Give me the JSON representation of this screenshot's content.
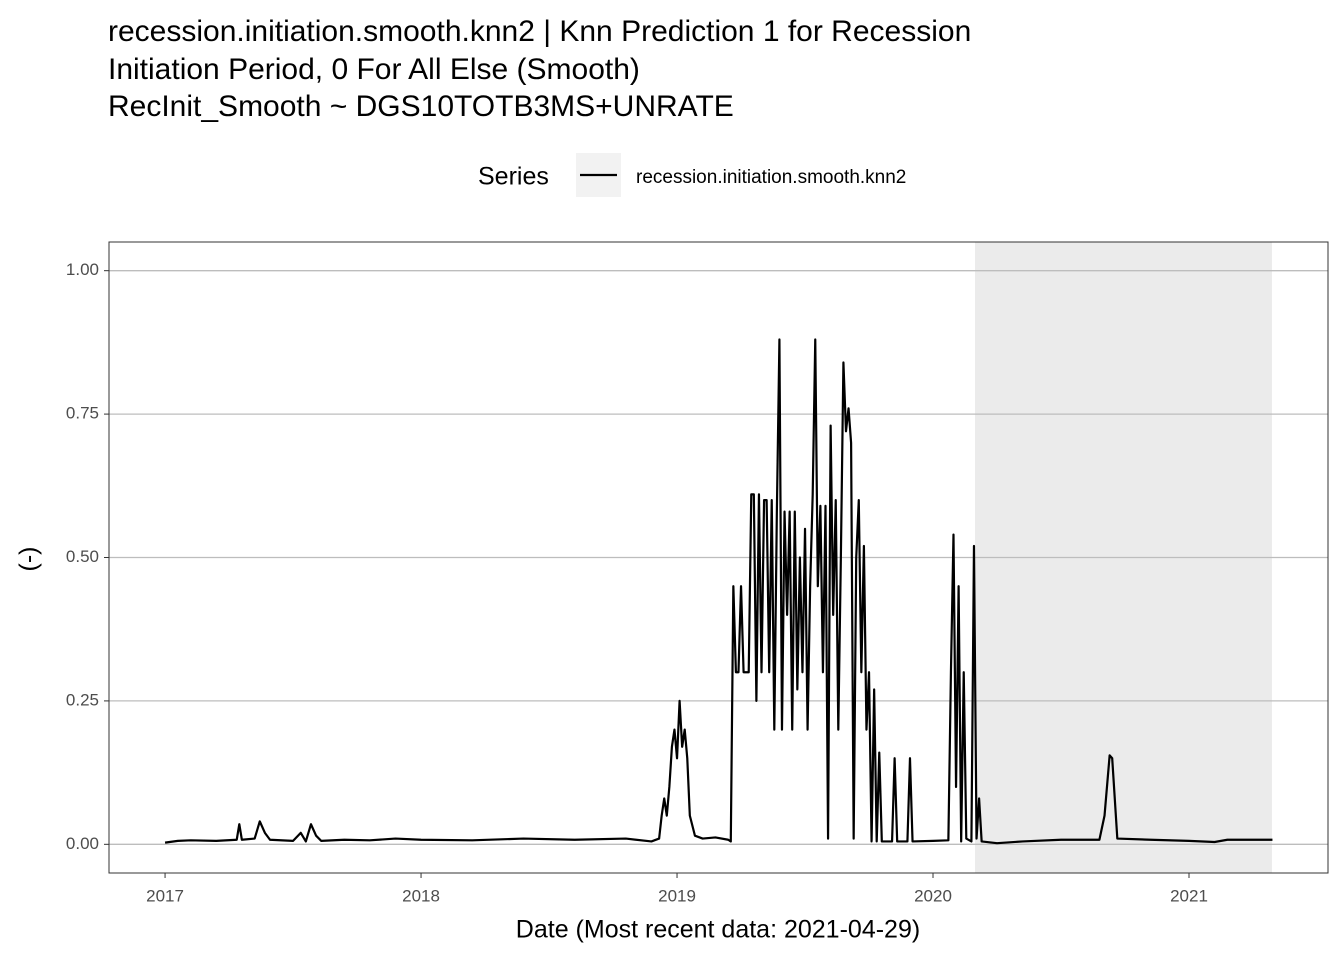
{
  "chart_data": {
    "type": "line",
    "title": [
      "recession.initiation.smooth.knn2 | Knn Prediction 1 for Recession",
      "Initiation Period, 0 For All Else (Smooth)"
    ],
    "subtitle": " RecInit_Smooth ~  DGS10TOTB3MS+UNRATE",
    "x_label": "Date (Most recent data: 2021-04-29)",
    "y_label": "(-)",
    "legend_title": "Series",
    "legend_position": "top",
    "grid": true,
    "xlim": [
      2016.781,
      2021.543
    ],
    "ylim": [
      -0.05,
      1.05
    ],
    "xticks": [
      2017,
      2018,
      2019,
      2020,
      2021
    ],
    "yticks": [
      {
        "value": 0,
        "label": "0.00"
      },
      {
        "value": 0.25,
        "label": "0.25"
      },
      {
        "value": 0.5,
        "label": "0.50"
      },
      {
        "value": 0.75,
        "label": "0.75"
      },
      {
        "value": 1,
        "label": "1.00"
      }
    ],
    "shaded_regions": [
      {
        "start": 2020.164,
        "end": 2021.324,
        "color": "#ebebeb"
      }
    ],
    "x": [
      2017.0,
      2017.05,
      2017.1,
      2017.2,
      2017.28,
      2017.29,
      2017.3,
      2017.35,
      2017.37,
      2017.39,
      2017.41,
      2017.5,
      2017.53,
      2017.55,
      2017.57,
      2017.59,
      2017.61,
      2017.7,
      2017.8,
      2017.9,
      2018.0,
      2018.2,
      2018.4,
      2018.6,
      2018.8,
      2018.9,
      2018.93,
      2018.94,
      2018.95,
      2018.96,
      2018.97,
      2018.98,
      2018.99,
      2019.0,
      2019.01,
      2019.02,
      2019.03,
      2019.04,
      2019.05,
      2019.07,
      2019.1,
      2019.15,
      2019.2,
      2019.21,
      2019.22,
      2019.23,
      2019.24,
      2019.25,
      2019.26,
      2019.28,
      2019.29,
      2019.3,
      2019.31,
      2019.32,
      2019.33,
      2019.34,
      2019.35,
      2019.36,
      2019.37,
      2019.38,
      2019.39,
      2019.4,
      2019.41,
      2019.42,
      2019.43,
      2019.44,
      2019.45,
      2019.46,
      2019.47,
      2019.48,
      2019.49,
      2019.5,
      2019.51,
      2019.52,
      2019.53,
      2019.54,
      2019.55,
      2019.56,
      2019.57,
      2019.58,
      2019.59,
      2019.6,
      2019.61,
      2019.62,
      2019.63,
      2019.64,
      2019.65,
      2019.66,
      2019.67,
      2019.68,
      2019.69,
      2019.7,
      2019.71,
      2019.72,
      2019.73,
      2019.74,
      2019.75,
      2019.76,
      2019.77,
      2019.78,
      2019.79,
      2019.8,
      2019.84,
      2019.85,
      2019.86,
      2019.9,
      2019.91,
      2019.92,
      2020.0,
      2020.06,
      2020.07,
      2020.08,
      2020.09,
      2020.1,
      2020.11,
      2020.12,
      2020.13,
      2020.15,
      2020.16,
      2020.17,
      2020.18,
      2020.19,
      2020.25,
      2020.35,
      2020.5,
      2020.65,
      2020.67,
      2020.69,
      2020.7,
      2020.72,
      2020.85,
      2021.0,
      2021.1,
      2021.15,
      2021.326
    ],
    "series": [
      {
        "name": "recession.initiation.smooth.knn2",
        "color": "#000000",
        "values": [
          0.003,
          0.006,
          0.007,
          0.006,
          0.008,
          0.035,
          0.008,
          0.01,
          0.04,
          0.02,
          0.008,
          0.006,
          0.02,
          0.005,
          0.035,
          0.015,
          0.006,
          0.008,
          0.007,
          0.01,
          0.008,
          0.007,
          0.01,
          0.008,
          0.01,
          0.005,
          0.01,
          0.05,
          0.08,
          0.05,
          0.1,
          0.17,
          0.2,
          0.15,
          0.25,
          0.17,
          0.2,
          0.15,
          0.05,
          0.015,
          0.01,
          0.012,
          0.008,
          0.005,
          0.45,
          0.3,
          0.3,
          0.45,
          0.3,
          0.3,
          0.61,
          0.61,
          0.25,
          0.61,
          0.3,
          0.6,
          0.6,
          0.3,
          0.6,
          0.2,
          0.58,
          0.88,
          0.2,
          0.58,
          0.4,
          0.58,
          0.2,
          0.58,
          0.27,
          0.5,
          0.3,
          0.55,
          0.2,
          0.45,
          0.61,
          0.88,
          0.45,
          0.59,
          0.3,
          0.59,
          0.01,
          0.73,
          0.4,
          0.6,
          0.2,
          0.5,
          0.84,
          0.72,
          0.76,
          0.7,
          0.01,
          0.5,
          0.6,
          0.3,
          0.52,
          0.2,
          0.3,
          0.005,
          0.27,
          0.005,
          0.16,
          0.005,
          0.005,
          0.15,
          0.005,
          0.005,
          0.15,
          0.005,
          0.006,
          0.007,
          0.3,
          0.54,
          0.1,
          0.45,
          0.005,
          0.3,
          0.01,
          0.005,
          0.52,
          0.01,
          0.08,
          0.005,
          0.002,
          0.005,
          0.008,
          0.008,
          0.05,
          0.155,
          0.15,
          0.01,
          0.008,
          0.006,
          0.004,
          0.008,
          0.008
        ]
      }
    ]
  }
}
